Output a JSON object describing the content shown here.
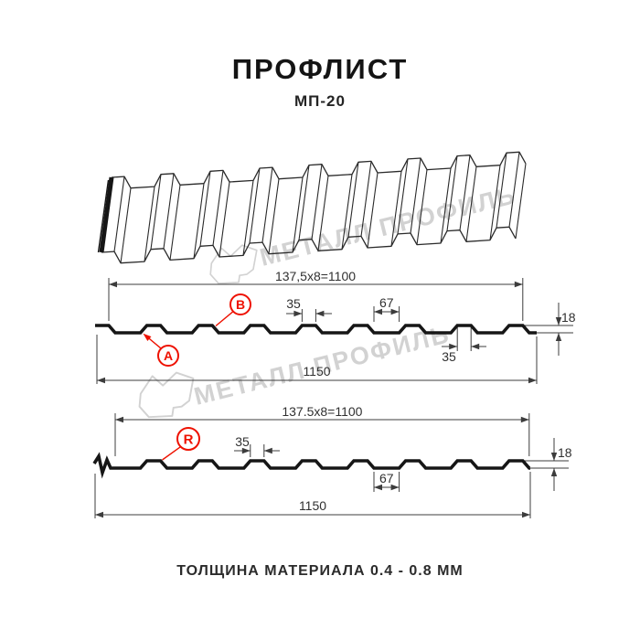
{
  "header": {
    "title": "ПРОФЛИСТ",
    "subtitle": "МП-20"
  },
  "footer": {
    "thickness_note": "ТОЛЩИНА МАТЕРИАЛА 0.4 - 0.8 ММ"
  },
  "watermark": {
    "brand": "МЕТАЛЛ ПРОФИЛЬ",
    "color": "#d2d2d2"
  },
  "colors": {
    "background": "#ffffff",
    "outline": "#161616",
    "dimension_lines": "#3c3c3c",
    "accent_red": "#ee1100"
  },
  "section_top": {
    "pitch_dim": "137,5x8=1100",
    "overall_width": "1150",
    "rib_top_width": "35",
    "valley_width": "67",
    "profile_height": "18",
    "rib_width_lower": "35",
    "point_labels": {
      "a": "A",
      "b": "B"
    }
  },
  "section_bottom": {
    "pitch_dim": "137.5x8=1100",
    "overall_width": "1150",
    "rib_top_width": "35",
    "valley_width": "67",
    "profile_height": "18",
    "point_labels": {
      "r": "R"
    }
  }
}
